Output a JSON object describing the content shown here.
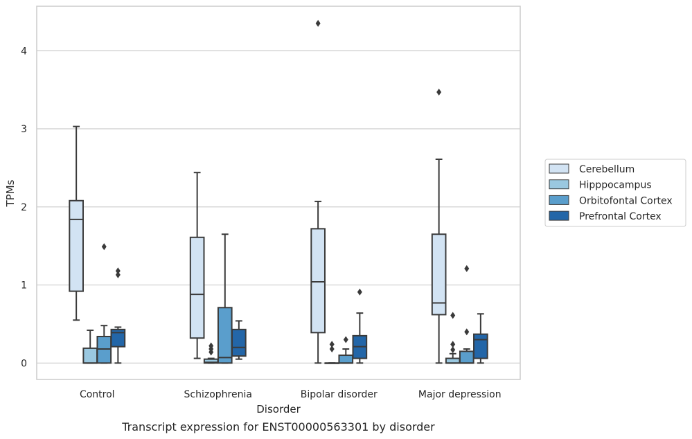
{
  "chart_data": {
    "type": "boxplot",
    "caption": "Transcript expression for ENST00000563301 by disorder",
    "xlabel": "Disorder",
    "ylabel": "TPMs",
    "ylim": [
      -0.21,
      4.57
    ],
    "yticks": [
      0,
      1,
      2,
      3,
      4
    ],
    "grid": "horizontal",
    "legend_position": "right",
    "categories": [
      "Control",
      "Schizophrenia",
      "Bipolar disorder",
      "Major depression"
    ],
    "series": [
      {
        "name": "Cerebellum",
        "color": "#d2e3f3",
        "boxes": [
          {
            "whisker_low": 0.55,
            "q1": 0.92,
            "median": 1.84,
            "q3": 2.08,
            "whisker_high": 3.03,
            "outliers": []
          },
          {
            "whisker_low": 0.06,
            "q1": 0.32,
            "median": 0.88,
            "q3": 1.61,
            "whisker_high": 2.44,
            "outliers": []
          },
          {
            "whisker_low": 0.0,
            "q1": 0.39,
            "median": 1.04,
            "q3": 1.72,
            "whisker_high": 2.07,
            "outliers": [
              4.35
            ]
          },
          {
            "whisker_low": 0.0,
            "q1": 0.62,
            "median": 0.77,
            "q3": 1.65,
            "whisker_high": 2.61,
            "outliers": [
              3.47
            ]
          }
        ]
      },
      {
        "name": "Hipppocampus",
        "color": "#9ac8e0",
        "boxes": [
          {
            "whisker_low": 0.0,
            "q1": 0.0,
            "median": 0.0,
            "q3": 0.19,
            "whisker_high": 0.42,
            "outliers": []
          },
          {
            "whisker_low": 0.0,
            "q1": 0.0,
            "median": 0.01,
            "q3": 0.05,
            "whisker_high": 0.06,
            "outliers": [
              0.14,
              0.18,
              0.22
            ]
          },
          {
            "whisker_low": 0.0,
            "q1": 0.0,
            "median": 0.0,
            "q3": 0.0,
            "whisker_high": 0.0,
            "outliers": [
              0.18,
              0.24
            ]
          },
          {
            "whisker_low": 0.0,
            "q1": 0.0,
            "median": 0.0,
            "q3": 0.06,
            "whisker_high": 0.12,
            "outliers": [
              0.17,
              0.24,
              0.61
            ]
          }
        ]
      },
      {
        "name": "Orbitofontal Cortex",
        "color": "#5a9ecc",
        "boxes": [
          {
            "whisker_low": 0.0,
            "q1": 0.0,
            "median": 0.18,
            "q3": 0.34,
            "whisker_high": 0.48,
            "outliers": [
              1.49
            ]
          },
          {
            "whisker_low": 0.0,
            "q1": 0.0,
            "median": 0.07,
            "q3": 0.71,
            "whisker_high": 1.65,
            "outliers": []
          },
          {
            "whisker_low": 0.0,
            "q1": 0.0,
            "median": 0.0,
            "q3": 0.1,
            "whisker_high": 0.18,
            "outliers": [
              0.3
            ]
          },
          {
            "whisker_low": 0.0,
            "q1": 0.0,
            "median": 0.0,
            "q3": 0.15,
            "whisker_high": 0.18,
            "outliers": [
              0.4,
              1.21
            ]
          }
        ]
      },
      {
        "name": "Prefrontal Cortex",
        "color": "#2366a8",
        "boxes": [
          {
            "whisker_low": 0.0,
            "q1": 0.21,
            "median": 0.39,
            "q3": 0.43,
            "whisker_high": 0.46,
            "outliers": [
              1.13,
              1.18
            ]
          },
          {
            "whisker_low": 0.05,
            "q1": 0.09,
            "median": 0.2,
            "q3": 0.43,
            "whisker_high": 0.54,
            "outliers": []
          },
          {
            "whisker_low": 0.0,
            "q1": 0.06,
            "median": 0.21,
            "q3": 0.35,
            "whisker_high": 0.64,
            "outliers": [
              0.91
            ]
          },
          {
            "whisker_low": 0.0,
            "q1": 0.06,
            "median": 0.3,
            "q3": 0.37,
            "whisker_high": 0.63,
            "outliers": []
          }
        ]
      }
    ]
  }
}
